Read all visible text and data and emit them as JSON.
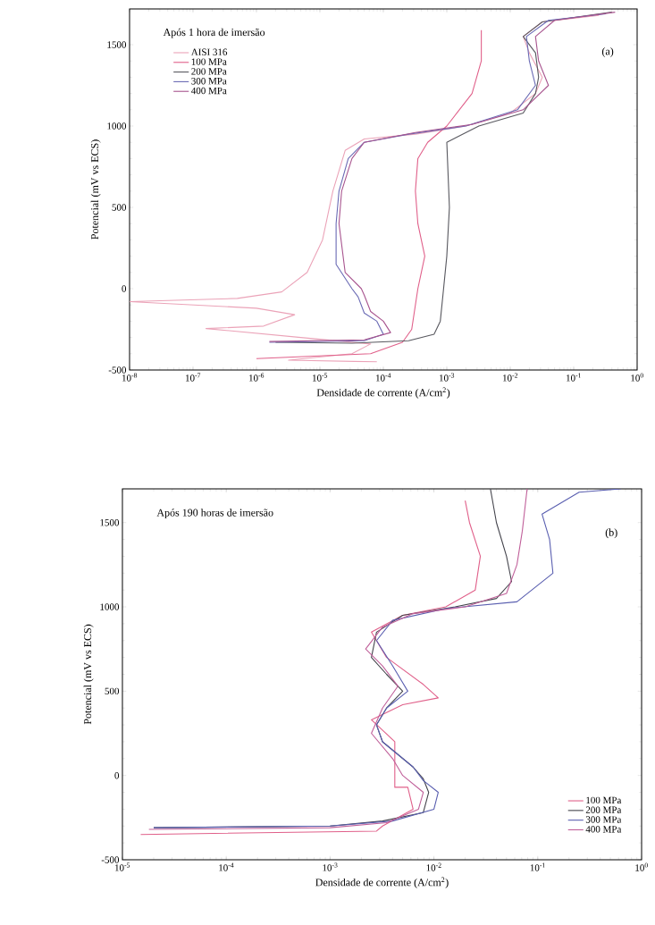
{
  "chart_data": [
    {
      "type": "line",
      "xlabel": "Densidade de corrente (A/cm$^{2}$)",
      "ylabel": "Potencial (mV vs ECS)",
      "log": "x",
      "legend": "top left",
      "annotations": [
        "Após 1 hora de imersão",
        "(a)"
      ],
      "xlim": [
        1e-08,
        1
      ],
      "ylim": [
        -500,
        1720
      ],
      "xticks": [
        {
          "value": 1e-08,
          "label": "10$^{-8}$"
        },
        {
          "value": 1e-07,
          "label": "10$^{-7}$"
        },
        {
          "value": 1e-06,
          "label": "10$^{-6}$"
        },
        {
          "value": 1e-05,
          "label": "10$^{-5}$"
        },
        {
          "value": 0.0001,
          "label": "10$^{-4}$"
        },
        {
          "value": 0.001,
          "label": "10$^{-3}$"
        },
        {
          "value": 0.01,
          "label": "10$^{-2}$"
        },
        {
          "value": 0.1,
          "label": "10$^{-1}$"
        },
        {
          "value": 1,
          "label": "10$^{0}$"
        }
      ],
      "yticks": [
        -500,
        0,
        500,
        1000,
        1500
      ],
      "series": [
        {
          "name": "AISI 316",
          "color": "#eba3b8",
          "x": [
            7.9e-05,
            3.2e-06,
            3.2e-05,
            6.3e-05,
            5e-06,
            1.6e-07,
            1.3e-06,
            4e-06,
            1e-06,
            1e-08,
            5e-07,
            2.5e-06,
            6.3e-06,
            1.1e-05,
            1.6e-05,
            2.5e-05,
            5e-05,
            0.00032,
            0.002,
            0.01,
            0.025,
            0.032,
            0.02,
            0.016,
            0.032,
            0.25
          ],
          "values": [
            -450,
            -440,
            -400,
            -340,
            -300,
            -245,
            -230,
            -160,
            -120,
            -80,
            -60,
            -20,
            100,
            300,
            600,
            850,
            920,
            950,
            1000,
            1080,
            1200,
            1300,
            1450,
            1550,
            1640,
            1680
          ]
        },
        {
          "name": "100 MPa",
          "color": "#e0608a",
          "x": [
            1e-06,
            6.3e-05,
            0.0002,
            0.00028,
            0.00035,
            0.00045,
            0.00035,
            0.00032,
            0.00035,
            0.0005,
            0.001,
            0.0025,
            0.0035,
            0.0035
          ],
          "values": [
            -430,
            -400,
            -330,
            -250,
            0,
            200,
            400,
            600,
            800,
            900,
            1000,
            1200,
            1400,
            1590
          ]
        },
        {
          "name": "200 MPa",
          "color": "#58585f",
          "x": [
            2e-06,
            3.2e-05,
            0.00025,
            0.00063,
            0.00079,
            0.00089,
            0.001,
            0.0011,
            0.001,
            0.0032,
            0.016,
            0.025,
            0.028,
            0.025,
            0.016,
            0.032,
            0.4
          ],
          "values": [
            -330,
            -335,
            -320,
            -280,
            -200,
            0,
            200,
            500,
            900,
            1000,
            1080,
            1200,
            1300,
            1450,
            1550,
            1640,
            1700
          ]
        },
        {
          "name": "300 MPa",
          "color": "#6a6ab4",
          "x": [
            1.6e-06,
            5e-05,
            0.0001,
            7.9e-05,
            5e-05,
            4e-05,
            3.2e-05,
            1.8e-05,
            1.8e-05,
            2e-05,
            2.8e-05,
            5e-05,
            0.00025,
            0.002,
            0.013,
            0.025,
            0.02,
            0.018,
            0.04,
            0.32
          ],
          "values": [
            -330,
            -320,
            -280,
            -200,
            -150,
            -50,
            0,
            150,
            400,
            600,
            800,
            900,
            950,
            1000,
            1100,
            1250,
            1400,
            1550,
            1650,
            1690
          ]
        },
        {
          "name": "400 MPa",
          "color": "#a8558f",
          "x": [
            1.6e-06,
            5e-05,
            0.00013,
            0.0001,
            6.3e-05,
            5e-05,
            4.5e-05,
            2.5e-05,
            2e-05,
            2.2e-05,
            3.2e-05,
            5e-05,
            0.00032,
            0.0025,
            0.016,
            0.04,
            0.028,
            0.025,
            0.05,
            0.45
          ],
          "values": [
            -325,
            -315,
            -270,
            -200,
            -140,
            -40,
            0,
            100,
            400,
            600,
            800,
            900,
            960,
            1010,
            1100,
            1250,
            1400,
            1550,
            1650,
            1700
          ]
        }
      ]
    },
    {
      "type": "line",
      "xlabel": "Densidade de corrente  (A/cm$^{2}$)",
      "ylabel": "Potencial (mV vs ECS)",
      "log": "x",
      "legend": "bottom right",
      "annotations": [
        "Após 190 horas de imersão",
        "(b)"
      ],
      "xlim": [
        1e-05,
        1
      ],
      "ylim": [
        -500,
        1700
      ],
      "xticks": [
        {
          "value": 1e-05,
          "label": "10$^{-5}$"
        },
        {
          "value": 0.0001,
          "label": "10$^{-4}$"
        },
        {
          "value": 0.001,
          "label": "10$^{-3}$"
        },
        {
          "value": 0.01,
          "label": "10$^{-2}$"
        },
        {
          "value": 0.1,
          "label": "10$^{-1}$"
        },
        {
          "value": 1,
          "label": "10$^{0}$"
        }
      ],
      "yticks": [
        -500,
        0,
        500,
        1000,
        1500
      ],
      "series": [
        {
          "name": "100 MPa",
          "color": "#e0608a",
          "x": [
            1.5e-05,
            0.0028,
            0.0032,
            0.0063,
            0.0056,
            0.0042,
            0.0042,
            0.0025,
            0.005,
            0.011,
            0.0079,
            0.0035,
            0.0025,
            0.005,
            0.013,
            0.025,
            0.028,
            0.022,
            0.02
          ],
          "values": [
            -350,
            -330,
            -300,
            -200,
            -70,
            -70,
            200,
            330,
            420,
            460,
            540,
            700,
            850,
            950,
            1000,
            1100,
            1300,
            1500,
            1630
          ]
        },
        {
          "name": "200 MPa",
          "color": "#44444c",
          "x": [
            2e-05,
            0.001,
            0.0032,
            0.0079,
            0.0089,
            0.0079,
            0.0063,
            0.0032,
            0.0028,
            0.0035,
            0.005,
            0.0035,
            0.0025,
            0.0028,
            0.005,
            0.016,
            0.04,
            0.056,
            0.05,
            0.04,
            0.035
          ],
          "values": [
            -310,
            -300,
            -270,
            -220,
            -100,
            -20,
            50,
            200,
            300,
            400,
            500,
            600,
            700,
            850,
            950,
            1000,
            1050,
            1150,
            1300,
            1500,
            1700
          ]
        },
        {
          "name": "300 MPa",
          "color": "#5a5fb0",
          "x": [
            2e-05,
            0.001,
            0.004,
            0.01,
            0.011,
            0.0079,
            0.0063,
            0.0032,
            0.0028,
            0.0035,
            0.0056,
            0.004,
            0.0028,
            0.004,
            0.013,
            0.063,
            0.14,
            0.13,
            0.11,
            0.25,
            0.63
          ],
          "values": [
            -310,
            -300,
            -270,
            -200,
            -100,
            -30,
            50,
            200,
            300,
            400,
            500,
            650,
            800,
            920,
            990,
            1030,
            1200,
            1400,
            1550,
            1680,
            1700
          ]
        },
        {
          "name": "400 MPa",
          "color": "#c0609a",
          "x": [
            1.8e-05,
            0.001,
            0.0035,
            0.0071,
            0.0079,
            0.005,
            0.004,
            0.0025,
            0.0032,
            0.0045,
            0.0032,
            0.0022,
            0.0032,
            0.0063,
            0.02,
            0.05,
            0.063,
            0.071,
            0.079
          ],
          "values": [
            -320,
            -310,
            -280,
            -200,
            -100,
            0,
            100,
            250,
            400,
            530,
            650,
            750,
            880,
            960,
            1000,
            1080,
            1250,
            1450,
            1700
          ]
        }
      ]
    }
  ]
}
